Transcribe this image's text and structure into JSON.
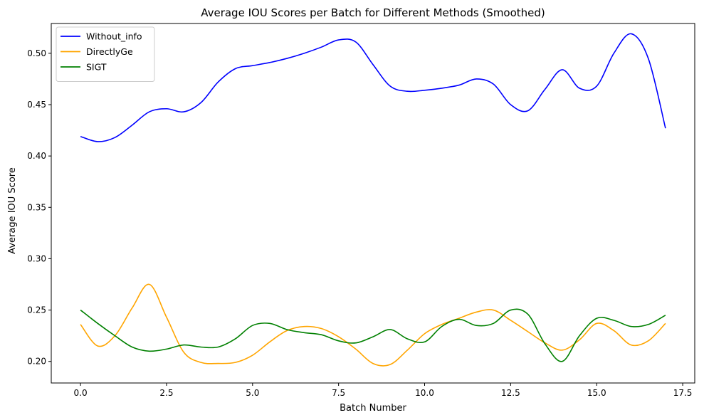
{
  "chart_data": {
    "type": "line",
    "title": "Average IOU Scores per Batch for Different Methods (Smoothed)",
    "xlabel": "Batch Number",
    "ylabel": "Average IOU Score",
    "xlim": [
      -0.85,
      17.85
    ],
    "ylim": [
      0.179,
      0.529
    ],
    "xticks": [
      0.0,
      2.5,
      5.0,
      7.5,
      10.0,
      12.5,
      15.0,
      17.5
    ],
    "xtick_labels": [
      "0.0",
      "2.5",
      "5.0",
      "7.5",
      "10.0",
      "12.5",
      "15.0",
      "17.5"
    ],
    "yticks": [
      0.2,
      0.25,
      0.3,
      0.35,
      0.4,
      0.45,
      0.5
    ],
    "ytick_labels": [
      "0.20",
      "0.25",
      "0.30",
      "0.35",
      "0.40",
      "0.45",
      "0.50"
    ],
    "grid": false,
    "legend_position": "upper-left",
    "series": [
      {
        "name": "Without_info",
        "color": "#0000ff",
        "x": [
          0,
          0.5,
          1,
          1.5,
          2,
          2.5,
          3,
          3.5,
          4,
          4.5,
          5,
          5.5,
          6,
          6.5,
          7,
          7.5,
          8,
          8.5,
          9,
          9.5,
          10,
          10.5,
          11,
          11.5,
          12,
          12.5,
          13,
          13.5,
          14,
          14.5,
          15,
          15.5,
          16,
          16.5,
          17
        ],
        "values": [
          0.419,
          0.414,
          0.418,
          0.43,
          0.443,
          0.446,
          0.443,
          0.452,
          0.472,
          0.485,
          0.488,
          0.491,
          0.495,
          0.5,
          0.506,
          0.513,
          0.511,
          0.489,
          0.468,
          0.463,
          0.464,
          0.466,
          0.469,
          0.475,
          0.47,
          0.45,
          0.444,
          0.465,
          0.484,
          0.466,
          0.468,
          0.5,
          0.519,
          0.495,
          0.427
        ]
      },
      {
        "name": "DirectlyGe",
        "color": "#ffa500",
        "x": [
          0,
          0.5,
          1,
          1.5,
          2,
          2.5,
          3,
          3.5,
          4,
          4.5,
          5,
          5.5,
          6,
          6.5,
          7,
          7.5,
          8,
          8.5,
          9,
          9.5,
          10,
          10.5,
          11,
          11.5,
          12,
          12.5,
          13,
          13.5,
          14,
          14.5,
          15,
          15.5,
          16,
          16.5,
          17
        ],
        "values": [
          0.236,
          0.215,
          0.225,
          0.252,
          0.275,
          0.243,
          0.209,
          0.199,
          0.198,
          0.199,
          0.206,
          0.219,
          0.23,
          0.234,
          0.232,
          0.224,
          0.212,
          0.198,
          0.197,
          0.211,
          0.227,
          0.236,
          0.242,
          0.248,
          0.25,
          0.24,
          0.229,
          0.218,
          0.211,
          0.221,
          0.237,
          0.23,
          0.216,
          0.22,
          0.237
        ]
      },
      {
        "name": "SIGT",
        "color": "#008000",
        "x": [
          0,
          0.5,
          1,
          1.5,
          2,
          2.5,
          3,
          3.5,
          4,
          4.5,
          5,
          5.5,
          6,
          6.5,
          7,
          7.5,
          8,
          8.5,
          9,
          9.5,
          10,
          10.5,
          11,
          11.5,
          12,
          12.5,
          13,
          13.5,
          14,
          14.5,
          15,
          15.5,
          16,
          16.5,
          17
        ],
        "values": [
          0.25,
          0.237,
          0.225,
          0.214,
          0.21,
          0.212,
          0.216,
          0.214,
          0.214,
          0.222,
          0.235,
          0.237,
          0.231,
          0.228,
          0.226,
          0.22,
          0.218,
          0.224,
          0.231,
          0.222,
          0.219,
          0.234,
          0.241,
          0.235,
          0.237,
          0.25,
          0.246,
          0.217,
          0.2,
          0.225,
          0.242,
          0.24,
          0.234,
          0.236,
          0.245
        ]
      }
    ]
  }
}
